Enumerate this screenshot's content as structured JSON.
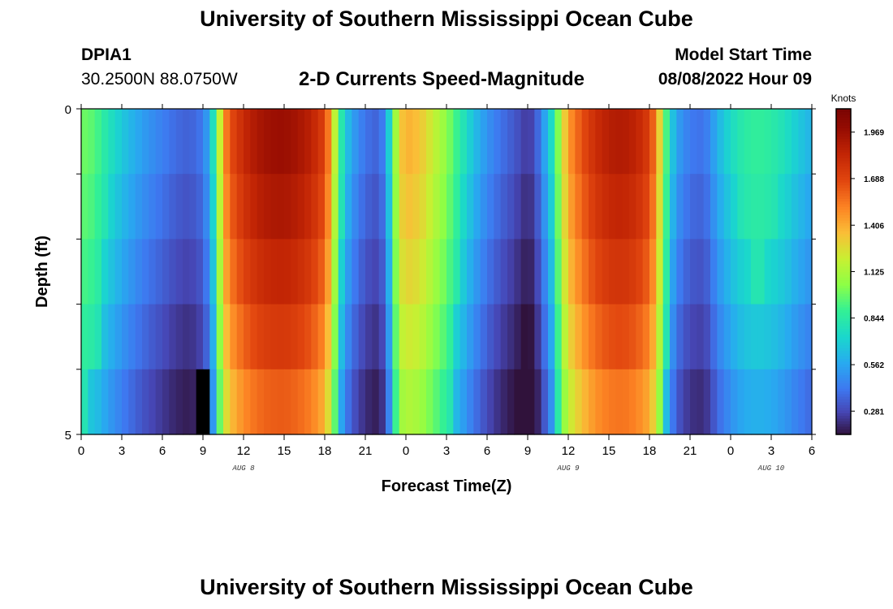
{
  "header": {
    "title": "University of Southern Mississippi Ocean Cube",
    "station_id": "DPIA1",
    "station_coords": "30.2500N  88.0750W",
    "plot_title": "2-D Currents Speed-Magnitude",
    "start_label": "Model Start Time",
    "start_value": "08/08/2022 Hour 09"
  },
  "footer": {
    "title": "University of Southern Mississippi Ocean Cube"
  },
  "chart_data": {
    "type": "heatmap",
    "xlabel": "Forecast Time(Z)",
    "ylabel": "Depth (ft)",
    "x_tick_labels": [
      "0",
      "3",
      "6",
      "9",
      "12",
      "15",
      "18",
      "21",
      "0",
      "3",
      "6",
      "9",
      "12",
      "15",
      "18",
      "21",
      "0",
      "3",
      "6"
    ],
    "x_tick_hours": [
      0,
      3,
      6,
      9,
      12,
      15,
      18,
      21,
      24,
      27,
      30,
      33,
      36,
      39,
      42,
      45,
      48,
      51,
      54
    ],
    "date_labels": [
      {
        "text": "AUG 8",
        "hour": 12
      },
      {
        "text": "AUG 9",
        "hour": 36
      },
      {
        "text": "AUG 10",
        "hour": 51
      }
    ],
    "x_range_hours": [
      0,
      54
    ],
    "y_tick_labels": [
      "0",
      "5"
    ],
    "y_range": [
      0,
      5
    ],
    "depth_layers": 5,
    "colorbar": {
      "unit": "Knots",
      "range": [
        0.14,
        2.11
      ],
      "tick_labels": [
        "0.281",
        "0.562",
        "0.844",
        "1.125",
        "1.406",
        "1.688",
        "1.969"
      ],
      "tick_values": [
        0.281,
        0.562,
        0.844,
        1.125,
        1.406,
        1.688,
        1.969
      ]
    },
    "time_step_hours": 0.5,
    "profile": [
      [
        0,
        1.0
      ],
      [
        1,
        0.95
      ],
      [
        2,
        0.8
      ],
      [
        3,
        0.68
      ],
      [
        4,
        0.58
      ],
      [
        5,
        0.5
      ],
      [
        6,
        0.44
      ],
      [
        7,
        0.38
      ],
      [
        8,
        0.35
      ],
      [
        9,
        0.42
      ],
      [
        9.5,
        0.6
      ],
      [
        10,
        0.95
      ],
      [
        10.5,
        1.45
      ],
      [
        11,
        1.65
      ],
      [
        12,
        1.82
      ],
      [
        13,
        1.92
      ],
      [
        14,
        1.97
      ],
      [
        15,
        1.98
      ],
      [
        16,
        1.94
      ],
      [
        17,
        1.86
      ],
      [
        18,
        1.7
      ],
      [
        18.5,
        1.4
      ],
      [
        19,
        0.95
      ],
      [
        19.5,
        0.7
      ],
      [
        20,
        0.55
      ],
      [
        21,
        0.4
      ],
      [
        22,
        0.35
      ],
      [
        22.5,
        0.5
      ],
      [
        23,
        0.9
      ],
      [
        23.5,
        1.3
      ],
      [
        24,
        1.4
      ],
      [
        25,
        1.35
      ],
      [
        26,
        1.2
      ],
      [
        27,
        1.05
      ],
      [
        28,
        0.85
      ],
      [
        29,
        0.65
      ],
      [
        30,
        0.5
      ],
      [
        31,
        0.4
      ],
      [
        32,
        0.33
      ],
      [
        33,
        0.24
      ],
      [
        33.5,
        0.3
      ],
      [
        34,
        0.45
      ],
      [
        34.5,
        0.65
      ],
      [
        35,
        0.85
      ],
      [
        35.5,
        1.2
      ],
      [
        36,
        1.45
      ],
      [
        37,
        1.65
      ],
      [
        38,
        1.8
      ],
      [
        39,
        1.88
      ],
      [
        40,
        1.9
      ],
      [
        41,
        1.85
      ],
      [
        42,
        1.72
      ],
      [
        42.5,
        1.5
      ],
      [
        43,
        1.1
      ],
      [
        43.5,
        0.75
      ],
      [
        44,
        0.55
      ],
      [
        45,
        0.42
      ],
      [
        46,
        0.4
      ],
      [
        46.5,
        0.48
      ],
      [
        47,
        0.6
      ],
      [
        48,
        0.75
      ],
      [
        49,
        0.85
      ],
      [
        50,
        0.88
      ],
      [
        51,
        0.85
      ],
      [
        52,
        0.78
      ],
      [
        53,
        0.68
      ],
      [
        54,
        0.6
      ]
    ],
    "layer_factors": [
      1.0,
      0.97,
      0.93,
      0.88,
      0.82
    ],
    "black_cell": {
      "hour": 9,
      "layer": 4
    }
  }
}
